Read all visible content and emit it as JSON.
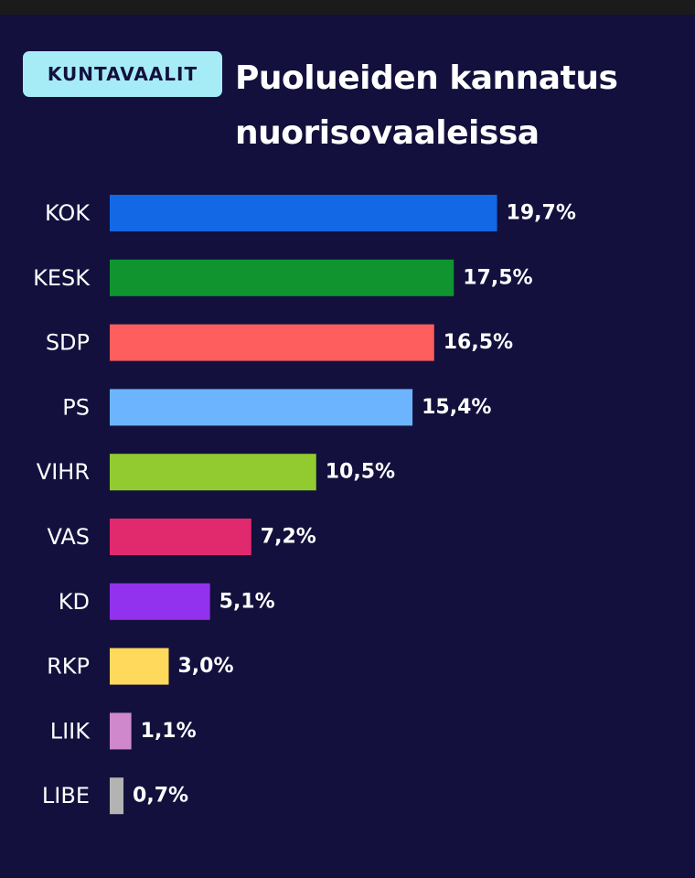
{
  "header": {
    "badge": "KUNTAVAALIT",
    "title_line1": "Puolueiden kannatus",
    "title_line2": "nuorisovaaleissa"
  },
  "chart_data": {
    "type": "bar",
    "orientation": "horizontal",
    "title": "Puolueiden kannatus nuorisovaaleissa",
    "categories": [
      "KOK",
      "KESK",
      "SDP",
      "PS",
      "VIHR",
      "VAS",
      "KD",
      "RKP",
      "LIIK",
      "LIBE"
    ],
    "values": [
      19.7,
      17.5,
      16.5,
      15.4,
      10.5,
      7.2,
      5.1,
      3.0,
      1.1,
      0.7
    ],
    "value_labels": [
      "19,7%",
      "17,5%",
      "16,5%",
      "15,4%",
      "10,5%",
      "7,2%",
      "5,1%",
      "3,0%",
      "1,1%",
      "0,7%"
    ],
    "colors": [
      "#1368e6",
      "#0f9430",
      "#fe5e5e",
      "#6cb4fd",
      "#91cb30",
      "#e1296e",
      "#9232ee",
      "#ffd95c",
      "#ce88cb",
      "#b3b3b3"
    ],
    "unit": "%",
    "grid": false,
    "legend": "none"
  }
}
